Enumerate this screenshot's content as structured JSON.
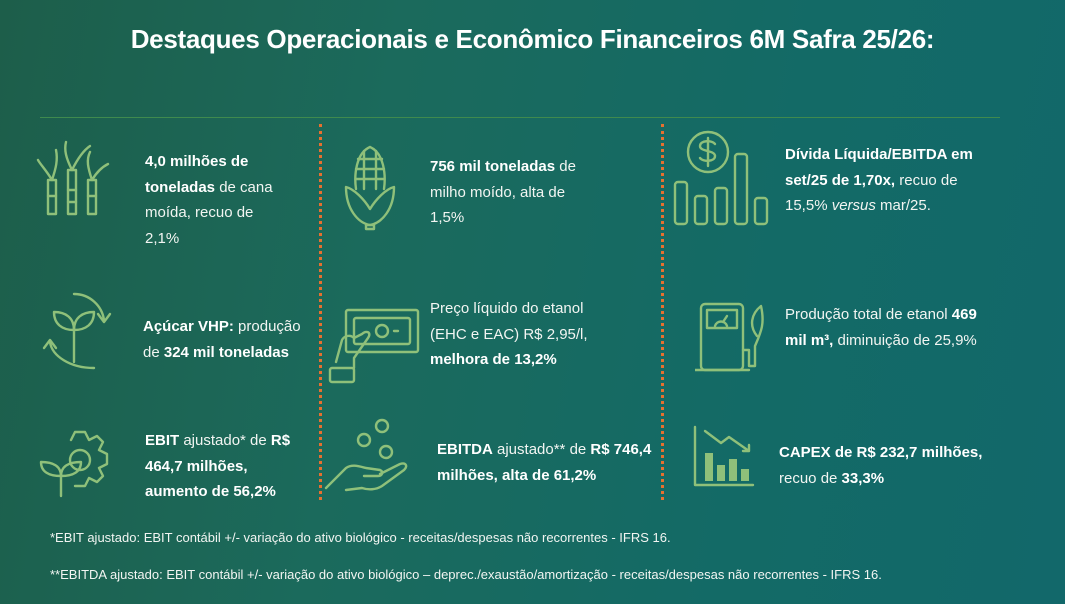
{
  "title": "Destaques Operacionais e Econômico Financeiros 6M Safra 25/26:",
  "colors": {
    "accent_icon": "#8fc07a",
    "divider": "#e8702e"
  },
  "items": [
    {
      "icon": "sugarcane-icon",
      "segments": [
        {
          "t": "4,0 milhões de toneladas",
          "s": "b"
        },
        {
          "t": " de cana moída, recuo de 2,1%",
          "s": "n"
        }
      ]
    },
    {
      "icon": "corn-icon",
      "segments": [
        {
          "t": "756 mil toneladas",
          "s": "b"
        },
        {
          "t": " de milho moído, alta de 1,5%",
          "s": "n"
        }
      ]
    },
    {
      "icon": "money-chart-icon",
      "segments": [
        {
          "t": "Dívida Líquida/EBITDA em set/25 de 1,70x,",
          "s": "b"
        },
        {
          "t": " recuo de 15,5% ",
          "s": "n"
        },
        {
          "t": "versus",
          "s": "i"
        },
        {
          "t": " mar/25.",
          "s": "n"
        }
      ]
    },
    {
      "icon": "recycle-plant-icon",
      "segments": [
        {
          "t": "Açúcar VHP:",
          "s": "b"
        },
        {
          "t": " produção de ",
          "s": "n"
        },
        {
          "t": "324 mil toneladas",
          "s": "b"
        }
      ]
    },
    {
      "icon": "hand-money-icon",
      "segments": [
        {
          "t": "Preço líquido do etanol (EHC e EAC) R$ 2,95/l, ",
          "s": "n"
        },
        {
          "t": "melhora de 13,2%",
          "s": "b"
        }
      ]
    },
    {
      "icon": "fuel-pump-leaf-icon",
      "segments": [
        {
          "t": "Produção total de etanol ",
          "s": "n"
        },
        {
          "t": "469 mil m³,",
          "s": "b"
        },
        {
          "t": " diminuição de 25,9%",
          "s": "n"
        }
      ]
    },
    {
      "icon": "gear-plant-icon",
      "segments": [
        {
          "t": "EBIT",
          "s": "b"
        },
        {
          "t": " ajustado* de ",
          "s": "n"
        },
        {
          "t": "R$ 464,7 milhões, aumento de 56,2%",
          "s": "b"
        }
      ]
    },
    {
      "icon": "hand-coins-icon",
      "segments": [
        {
          "t": "EBITDA",
          "s": "b"
        },
        {
          "t": " ajustado** de ",
          "s": "n"
        },
        {
          "t": "R$ 746,4 milhões, alta de 61,2%",
          "s": "b"
        }
      ]
    },
    {
      "icon": "bar-chart-down-icon",
      "segments": [
        {
          "t": "CAPEX de R$ 232,7 milhões,",
          "s": "b"
        },
        {
          "t": " recuo de ",
          "s": "n"
        },
        {
          "t": "33,3%",
          "s": "b"
        }
      ]
    }
  ],
  "footnotes": [
    "*EBIT ajustado: EBIT contábil +/- variação do ativo biológico - receitas/despesas não recorrentes - IFRS 16.",
    "**EBITDA ajustado: EBIT contábil +/- variação do ativo biológico – deprec./exaustão/amortização - receitas/despesas não recorrentes - IFRS 16."
  ]
}
